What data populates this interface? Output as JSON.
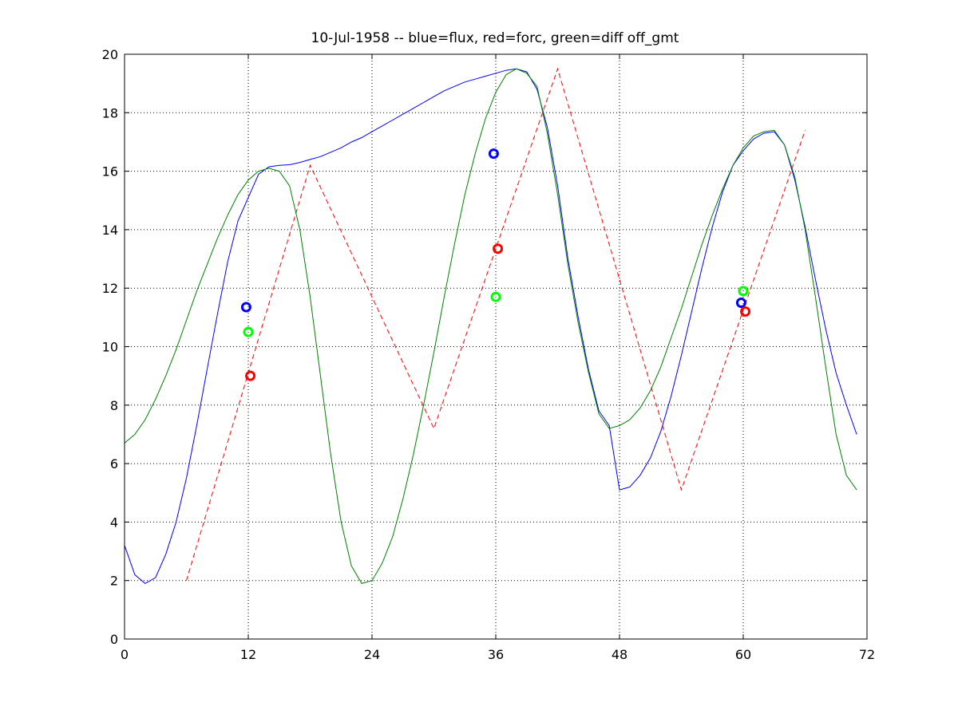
{
  "chart_data": {
    "type": "line",
    "title": "10-Jul-1958 -- blue=flux, red=forc, green=diff off_gmt",
    "xlabel": "",
    "ylabel": "",
    "xlim": [
      0,
      72
    ],
    "ylim": [
      0,
      20
    ],
    "xticks": [
      0,
      12,
      24,
      36,
      48,
      60,
      72
    ],
    "yticks": [
      0,
      2,
      4,
      6,
      8,
      10,
      12,
      14,
      16,
      18,
      20
    ],
    "grid": true,
    "series": [
      {
        "name": "flux",
        "color": "#0000ff",
        "style": "solid",
        "x": [
          0,
          1,
          2,
          3,
          4,
          5,
          6,
          7,
          8,
          9,
          10,
          11,
          12,
          13,
          14,
          15,
          16,
          17,
          18,
          19,
          20,
          21,
          22,
          23,
          24,
          25,
          26,
          27,
          28,
          29,
          30,
          31,
          32,
          33,
          34,
          35,
          36,
          37,
          38,
          39,
          40,
          41,
          42,
          43,
          44,
          45,
          46,
          47,
          48,
          49,
          50,
          51,
          52,
          53,
          54,
          55,
          56,
          57,
          58,
          59,
          60,
          61,
          62,
          63,
          64,
          65,
          66,
          67,
          68,
          69,
          70,
          71
        ],
        "values": [
          3.2,
          2.2,
          1.9,
          2.1,
          2.9,
          4.0,
          5.5,
          7.3,
          9.2,
          11.1,
          12.9,
          14.3,
          15.1,
          15.9,
          16.15,
          16.2,
          16.22,
          16.3,
          16.4,
          16.5,
          16.65,
          16.8,
          17.0,
          17.15,
          17.35,
          17.55,
          17.75,
          17.95,
          18.15,
          18.35,
          18.55,
          18.75,
          18.9,
          19.05,
          19.15,
          19.25,
          19.35,
          19.45,
          19.5,
          19.4,
          18.8,
          17.5,
          15.5,
          13.0,
          11.0,
          9.2,
          7.8,
          7.3,
          5.1,
          5.2,
          5.6,
          6.2,
          7.1,
          8.3,
          9.7,
          11.2,
          12.7,
          14.1,
          15.3,
          16.2,
          16.7,
          17.1,
          17.3,
          17.35,
          16.9,
          15.7,
          14.1,
          12.3,
          10.6,
          9.1,
          8.0,
          7.0
        ]
      },
      {
        "name": "forc",
        "color": "#ff0000",
        "style": "dashed",
        "x": [
          6,
          18,
          30,
          42,
          54,
          66
        ],
        "values": [
          2.0,
          16.2,
          7.2,
          19.5,
          5.1,
          17.4
        ]
      },
      {
        "name": "diff",
        "color": "#008000",
        "style": "solid",
        "x": [
          0,
          1,
          2,
          3,
          4,
          5,
          6,
          7,
          8,
          9,
          10,
          11,
          12,
          13,
          14,
          15,
          16,
          17,
          18,
          19,
          20,
          21,
          22,
          23,
          24,
          25,
          26,
          27,
          28,
          29,
          30,
          31,
          32,
          33,
          34,
          35,
          36,
          37,
          38,
          39,
          40,
          41,
          42,
          43,
          44,
          45,
          46,
          47,
          48,
          49,
          50,
          51,
          52,
          53,
          54,
          55,
          56,
          57,
          58,
          59,
          60,
          61,
          62,
          63,
          64,
          65,
          66,
          67,
          68,
          69,
          70,
          71
        ],
        "values": [
          6.7,
          7.0,
          7.5,
          8.2,
          9.0,
          9.9,
          10.9,
          11.9,
          12.8,
          13.7,
          14.5,
          15.2,
          15.7,
          16.0,
          16.1,
          16.0,
          15.5,
          14.0,
          11.7,
          9.0,
          6.3,
          4.0,
          2.5,
          1.9,
          2.0,
          2.6,
          3.5,
          4.8,
          6.3,
          8.0,
          9.8,
          11.7,
          13.5,
          15.2,
          16.6,
          17.8,
          18.7,
          19.3,
          19.5,
          19.35,
          18.9,
          17.3,
          15.2,
          12.8,
          10.8,
          9.1,
          7.7,
          7.2,
          7.3,
          7.5,
          7.9,
          8.5,
          9.3,
          10.3,
          11.3,
          12.4,
          13.5,
          14.5,
          15.4,
          16.2,
          16.8,
          17.2,
          17.35,
          17.4,
          16.9,
          15.8,
          14.0,
          11.7,
          9.3,
          7.0,
          5.6,
          5.1
        ]
      },
      {
        "name": "flux markers",
        "color": "#0000ff",
        "style": "circle",
        "x": [
          11.8,
          35.8,
          59.8
        ],
        "values": [
          11.35,
          16.6,
          11.5
        ]
      },
      {
        "name": "forc markers",
        "color": "#ff0000",
        "style": "circle",
        "x": [
          12.2,
          36.2,
          60.2
        ],
        "values": [
          9.0,
          13.35,
          11.2
        ]
      },
      {
        "name": "diff markers",
        "color": "#00ff00",
        "style": "circle",
        "x": [
          12.0,
          36.0,
          60.0
        ],
        "values": [
          10.5,
          11.7,
          11.9
        ]
      }
    ]
  }
}
